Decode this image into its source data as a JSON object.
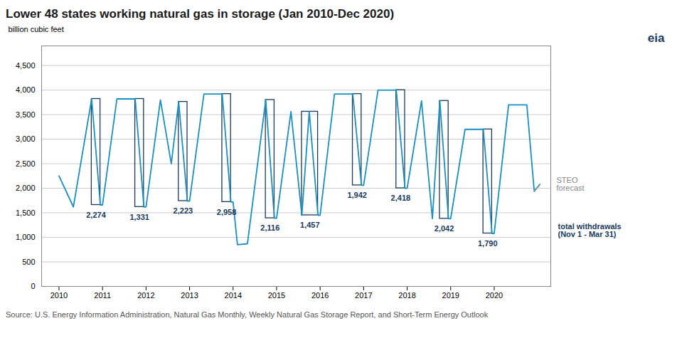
{
  "chart_data": {
    "type": "line",
    "title": "Lower 48 states working natural gas in storage (Jan 2010-Dec 2020)",
    "ylabel": "billion cubic feet",
    "caption": "Source: U.S. Energy Information Administration, Natural Gas Monthly, Weekly Natural Gas Storage Report, and Short-Term Energy Outlook",
    "xlim": [
      2009.6,
      2021.3
    ],
    "ylim": [
      0,
      4900
    ],
    "xticks": [
      2010,
      2011,
      2012,
      2013,
      2014,
      2015,
      2016,
      2017,
      2018,
      2019,
      2020
    ],
    "yticks": [
      0,
      500,
      {
        "value": 1000,
        "label": "1,000"
      },
      {
        "value": 1500,
        "label": "1,500"
      },
      {
        "value": 2000,
        "label": "2,000"
      },
      {
        "value": 2500,
        "label": "2,500"
      },
      {
        "value": 3000,
        "label": "3,000"
      },
      {
        "value": 3500,
        "label": "3,500"
      },
      {
        "value": 4000,
        "label": "4,000"
      },
      {
        "value": 4500,
        "label": "4,500"
      }
    ],
    "grid": true,
    "series": [
      {
        "color": "#1a8fc1",
        "line_style": "solid",
        "x": [
          2010.0,
          2010.33,
          2010.75,
          2010.95,
          2011.0,
          2011.33,
          2011.75,
          2011.95,
          2012.0,
          2012.33,
          2012.58,
          2012.75,
          2012.95,
          2013.0,
          2013.33,
          2013.75,
          2013.95,
          2014.0,
          2014.1,
          2014.33,
          2014.75,
          2014.95,
          2015.0,
          2015.33,
          2015.58,
          2015.75,
          2015.95,
          2016.0,
          2016.33,
          2016.75,
          2016.95,
          2017.0,
          2017.33,
          2017.75,
          2017.95,
          2018.0,
          2018.33,
          2018.58,
          2018.75,
          2018.95,
          2019.0,
          2019.33,
          2019.75,
          2019.95,
          2020.0,
          2020.33,
          2020.75,
          2020.92,
          2021.05
        ],
        "values": [
          2250,
          1620,
          3820,
          1660,
          1660,
          3820,
          3820,
          1620,
          1620,
          3800,
          2500,
          3760,
          1740,
          1740,
          3920,
          3920,
          1720,
          1720,
          850,
          870,
          3800,
          1390,
          1390,
          3560,
          1450,
          3560,
          1450,
          1450,
          3920,
          3920,
          2060,
          2060,
          4000,
          4000,
          2000,
          2000,
          3780,
          1380,
          3780,
          1380,
          1380,
          3200,
          3200,
          1080,
          1080,
          3700,
          3700,
          1940,
          2080
        ]
      },
      {
        "color": "#999999",
        "line_style": "dotted",
        "x": [
          2020.92,
          2021.05
        ],
        "values": [
          1940,
          2080
        ]
      }
    ],
    "boxes": {
      "color": "#1a3a5c",
      "items": [
        {
          "x_left": 2010.75,
          "x_right": 2010.95,
          "y_top": 3820,
          "y_bot": 1660,
          "label": "2,274"
        },
        {
          "x_left": 2011.75,
          "x_right": 2011.95,
          "y_top": 3820,
          "y_bot": 1620,
          "label": "1,331"
        },
        {
          "x_left": 2012.75,
          "x_right": 2012.95,
          "y_top": 3760,
          "y_bot": 1740,
          "label": "2,223"
        },
        {
          "x_left": 2013.75,
          "x_right": 2013.95,
          "y_top": 3920,
          "y_bot": 1720,
          "label": "2,958"
        },
        {
          "x_left": 2014.75,
          "x_right": 2014.95,
          "y_top": 3800,
          "y_bot": 1390,
          "label": "2,116"
        },
        {
          "x_left": 2015.58,
          "x_right": 2015.95,
          "y_top": 3560,
          "y_bot": 1450,
          "label": "1,457"
        },
        {
          "x_left": 2016.75,
          "x_right": 2016.95,
          "y_top": 3920,
          "y_bot": 2060,
          "label": "1,942"
        },
        {
          "x_left": 2017.75,
          "x_right": 2017.95,
          "y_top": 4000,
          "y_bot": 2000,
          "label": "2,418"
        },
        {
          "x_left": 2018.75,
          "x_right": 2018.95,
          "y_top": 3780,
          "y_bot": 1380,
          "label": "2,042"
        },
        {
          "x_left": 2019.75,
          "x_right": 2019.95,
          "y_top": 3200,
          "y_bot": 1080,
          "label": "1,790"
        }
      ]
    },
    "annotations": [
      "STEO\nforecast",
      "total withdrawals\n(Nov 1 - Mar 31)",
      "eia"
    ]
  }
}
